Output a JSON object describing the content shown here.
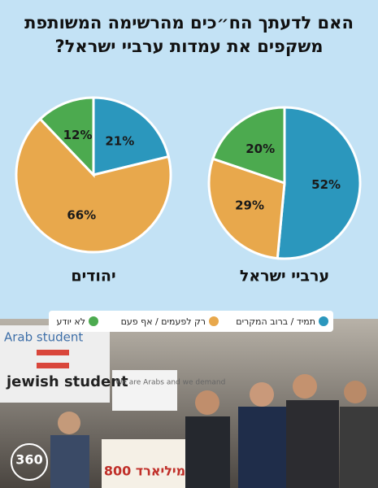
{
  "title": [
    "האם לדעתך הח״כים מהרשימה המשותפת",
    "משקפים את עמדות ערביי ישראל?"
  ],
  "chart_data": [
    {
      "type": "pie",
      "title": "יהודים",
      "categories": [
        "תמיד / ברוב המקרים",
        "רק לפעמים / אף פעם",
        "לא יודע"
      ],
      "values": [
        21,
        66,
        12
      ],
      "value_labels": [
        "21%",
        "66%",
        "12%"
      ],
      "colors": [
        "#2b97bd",
        "#e8a84c",
        "#4caa4f"
      ]
    },
    {
      "type": "pie",
      "title": "ערביי ישראל",
      "categories": [
        "תמיד / ברוב המקרים",
        "רק לפעמים / אף פעם",
        "לא יודע"
      ],
      "values": [
        52,
        29,
        20
      ],
      "value_labels": [
        "52%",
        "29%",
        "20%"
      ],
      "colors": [
        "#2b97bd",
        "#e8a84c",
        "#4caa4f"
      ]
    }
  ],
  "photo": {
    "signs": [
      "Arab student",
      "jewish student",
      "We are Arabs and we demand",
      "800 מיליארד"
    ],
    "logo": "360"
  }
}
